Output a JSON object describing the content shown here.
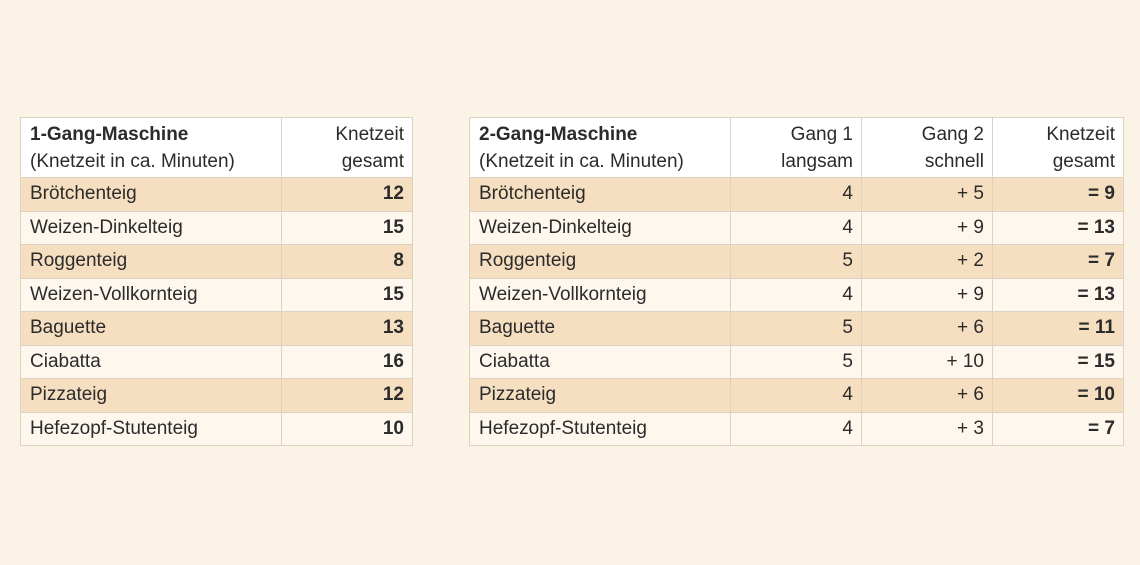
{
  "table1": {
    "title": "1-Gang-Maschine",
    "subtitle": "(Knetzeit in ca. Minuten)",
    "col_total_line1": "Knetzeit",
    "col_total_line2": "gesamt",
    "rows": [
      {
        "name": "Brötchenteig",
        "total": "12"
      },
      {
        "name": "Weizen-Dinkelteig",
        "total": "15"
      },
      {
        "name": "Roggenteig",
        "total": "8"
      },
      {
        "name": "Weizen-Vollkornteig",
        "total": "15"
      },
      {
        "name": "Baguette",
        "total": "13"
      },
      {
        "name": "Ciabatta",
        "total": "16"
      },
      {
        "name": "Pizzateig",
        "total": "12"
      },
      {
        "name": "Hefezopf-Stutenteig",
        "total": "10"
      }
    ]
  },
  "table2": {
    "title": "2-Gang-Maschine",
    "subtitle": "(Knetzeit in ca. Minuten)",
    "col_gang1_line1": "Gang 1",
    "col_gang1_line2": "langsam",
    "col_gang2_line1": "Gang 2",
    "col_gang2_line2": "schnell",
    "col_total_line1": "Knetzeit",
    "col_total_line2": "gesamt",
    "rows": [
      {
        "name": "Brötchenteig",
        "gang1": "4",
        "gang2": "+ 5",
        "total": "= 9"
      },
      {
        "name": "Weizen-Dinkelteig",
        "gang1": "4",
        "gang2": "+ 9",
        "total": "= 13"
      },
      {
        "name": "Roggenteig",
        "gang1": "5",
        "gang2": "+ 2",
        "total": "= 7"
      },
      {
        "name": "Weizen-Vollkornteig",
        "gang1": "4",
        "gang2": "+ 9",
        "total": "= 13"
      },
      {
        "name": "Baguette",
        "gang1": "5",
        "gang2": "+ 6",
        "total": "= 11"
      },
      {
        "name": "Ciabatta",
        "gang1": "5",
        "gang2": "+ 10",
        "total": "= 15"
      },
      {
        "name": "Pizzateig",
        "gang1": "4",
        "gang2": "+ 6",
        "total": "= 10"
      },
      {
        "name": "Hefezopf-Stutenteig",
        "gang1": "4",
        "gang2": "+ 3",
        "total": "= 7"
      }
    ]
  },
  "colors": {
    "page_background": "#fcf3e7",
    "row_shaded": "#f5dfc0",
    "row_plain": "#fdf7ee",
    "header_background": "#ffffff",
    "border": "#ddd2c2",
    "text": "#2b2b2b"
  }
}
